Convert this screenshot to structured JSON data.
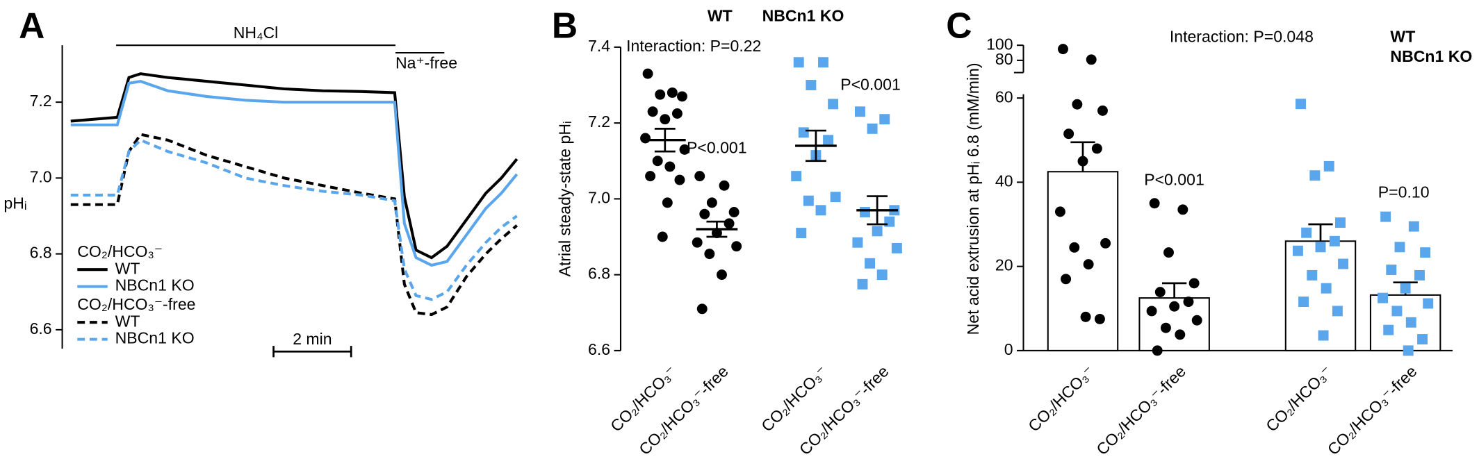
{
  "chart_data": [
    {
      "type": "line",
      "panel_label": "A",
      "y_label": "pHᵢ",
      "x": [
        0,
        1.2,
        1.5,
        1.8,
        2.5,
        3.5,
        4.5,
        5.5,
        6.5,
        7.5,
        8.35,
        8.6,
        8.9,
        9.3,
        9.7,
        10.2,
        10.7,
        11.1,
        11.5
      ],
      "xlim": [
        0,
        11.5
      ],
      "ylim": [
        6.55,
        7.35
      ],
      "yticks": [
        6.6,
        6.8,
        {
          "value": 7,
          "label": "7.0"
        },
        7.2
      ],
      "legend_groups": [
        "CO₂/HCO₃⁻",
        "CO₂/HCO₃⁻-free"
      ],
      "series": [
        {
          "name": "WT",
          "color": "#000000",
          "dashed": false,
          "group": 0,
          "values": [
            7.15,
            7.16,
            7.265,
            7.275,
            7.265,
            7.255,
            7.245,
            7.235,
            7.23,
            7.228,
            7.225,
            6.95,
            6.81,
            6.79,
            6.82,
            6.89,
            6.96,
            7.0,
            7.05
          ]
        },
        {
          "name": "NBCn1 KO",
          "color": "#5aa6ec",
          "dashed": false,
          "group": 0,
          "values": [
            7.14,
            7.14,
            7.25,
            7.255,
            7.23,
            7.215,
            7.205,
            7.2,
            7.2,
            7.2,
            7.2,
            6.88,
            6.79,
            6.77,
            6.78,
            6.85,
            6.92,
            6.96,
            7.01
          ]
        },
        {
          "name": "WT",
          "color": "#000000",
          "dashed": true,
          "group": 1,
          "values": [
            6.93,
            6.93,
            7.07,
            7.115,
            7.1,
            7.06,
            7.03,
            7.0,
            6.98,
            6.96,
            6.945,
            6.72,
            6.645,
            6.64,
            6.66,
            6.74,
            6.8,
            6.84,
            6.875
          ]
        },
        {
          "name": "NBCn1 KO",
          "color": "#5aa6ec",
          "dashed": true,
          "group": 1,
          "values": [
            6.955,
            6.955,
            7.07,
            7.1,
            7.07,
            7.04,
            7.0,
            6.98,
            6.965,
            6.955,
            6.94,
            6.76,
            6.69,
            6.68,
            6.7,
            6.77,
            6.83,
            6.87,
            6.9
          ]
        }
      ],
      "annotations": [
        {
          "text": "NH₄Cl",
          "x": [
            1.17,
            8.37
          ]
        },
        {
          "text": "Na⁺-free",
          "x": [
            8.37,
            9.63
          ]
        }
      ],
      "scale_bar": {
        "label": "2 min",
        "length": 2
      }
    },
    {
      "type": "dot",
      "panel_label": "B",
      "y_label": "Atrial steady-state pHᵢ",
      "categories": [
        "CO₂/HCO₃⁻",
        "CO₂/HCO₃⁻-free",
        "CO₂/HCO₃⁻",
        "CO₂/HCO₃⁻-free"
      ],
      "ylim": [
        6.6,
        7.4
      ],
      "yticks": [
        6.6,
        6.8,
        {
          "value": 7,
          "label": "7.0"
        },
        7.2,
        7.4
      ],
      "series": [
        {
          "name": "WT",
          "color": "#000000",
          "marker": "circle",
          "values": [
            7.155,
            6.92,
            null,
            null
          ],
          "errors": [
            0.03,
            0.02,
            null,
            null
          ],
          "points": [
            [
              7.33,
              7.28,
              7.275,
              7.27,
              7.23,
              7.225,
              7.21,
              7.16,
              7.13,
              7.1,
              7.085,
              7.06,
              7.05,
              6.99,
              6.9
            ],
            [
              7.06,
              7.035,
              6.99,
              6.965,
              6.96,
              6.935,
              6.91,
              6.885,
              6.875,
              6.855,
              6.8,
              6.71
            ],
            null,
            null
          ]
        },
        {
          "name": "NBCn1 KO",
          "color": "#5aa6ec",
          "marker": "square",
          "values": [
            null,
            null,
            7.14,
            6.97
          ],
          "errors": [
            null,
            null,
            0.04,
            0.037
          ],
          "points": [
            null,
            null,
            [
              7.36,
              7.36,
              7.3,
              7.25,
              7.175,
              7.155,
              7.115,
              7.06,
              7.005,
              6.995,
              6.97,
              6.91
            ],
            [
              7.23,
              7.21,
              7.185,
              6.97,
              6.965,
              6.94,
              6.915,
              6.885,
              6.87,
              6.83,
              6.8,
              6.775
            ]
          ]
        }
      ],
      "annotations": [
        "Interaction: P=0.22",
        "P<0.001",
        "P<0.001"
      ]
    },
    {
      "type": "bar",
      "panel_label": "C",
      "y_label": "Net acid extrusion at pHᵢ 6.8 (mM/min)",
      "categories": [
        "CO₂/HCO₃⁻",
        "CO₂/HCO₃⁻-free",
        "CO₂/HCO₃⁻",
        "CO₂/HCO₃⁻-free"
      ],
      "ylim": [
        0,
        100
      ],
      "ybreak": [
        60,
        70
      ],
      "yticks": [
        0,
        20,
        40,
        60,
        80,
        100
      ],
      "series": [
        {
          "name": "WT",
          "color": "#000000",
          "marker": "circle",
          "values": [
            42.5,
            12.5,
            null,
            null
          ],
          "errors": [
            7,
            3.5,
            null,
            null
          ],
          "points": [
            [
              95,
              81,
              58.5,
              57,
              51.5,
              48,
              45,
              33,
              25.5,
              24.5,
              20.5,
              17,
              7.5,
              8
            ],
            [
              35,
              33.5,
              23.3,
              16,
              13.9,
              11.6,
              10.5,
              9.4,
              7.2,
              5.4,
              3.8,
              0
            ],
            null,
            null
          ]
        },
        {
          "name": "NBCn1 KO",
          "color": "#5aa6ec",
          "marker": "square",
          "values": [
            null,
            null,
            26,
            13.2
          ],
          "errors": [
            null,
            null,
            4,
            3
          ],
          "points": [
            null,
            null,
            [
              58.6,
              43.8,
              41.6,
              30.4,
              28,
              26,
              24.6,
              23.7,
              20.6,
              17.9,
              14.8,
              11.6,
              9.4,
              3.6
            ],
            [
              31.8,
              29.5,
              24.6,
              23.3,
              19.2,
              17.9,
              14.8,
              12.5,
              11.2,
              9.4,
              6.7,
              4.9,
              2.7,
              0
            ]
          ]
        }
      ],
      "annotations": [
        "Interaction: P=0.048",
        "P<0.001",
        "P=0.10"
      ]
    }
  ]
}
